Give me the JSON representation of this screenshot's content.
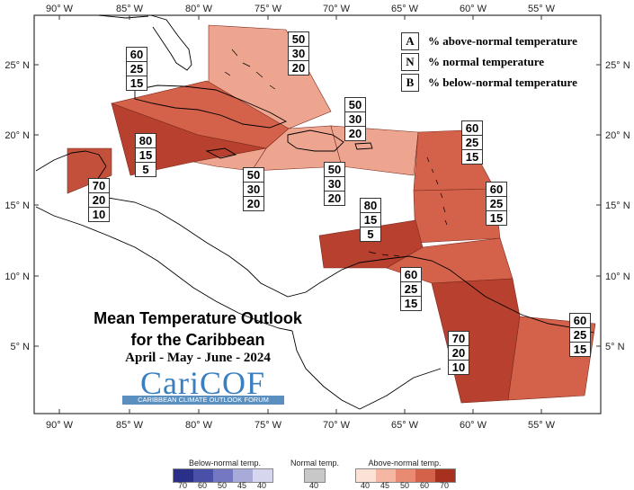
{
  "title_line1": "Mean Temperature Outlook",
  "title_line2": "for the Caribbean",
  "dates": "April - May - June - 2024",
  "logo_text": "CariCOF",
  "logo_sub": "CARIBBEAN CLIMATE OUTLOOK FORUM",
  "legend": [
    {
      "key": "A",
      "text": "% above-normal temperature"
    },
    {
      "key": "N",
      "text": "% normal temperature"
    },
    {
      "key": "B",
      "text": "% below-normal temperature"
    }
  ],
  "lon_ticks": [
    "90° W",
    "85° W",
    "80° W",
    "75° W",
    "70° W",
    "65° W",
    "60° W",
    "55° W"
  ],
  "lat_ticks": [
    "25° N",
    "20° N",
    "15° N",
    "10° N",
    "5° N"
  ],
  "zones": [
    {
      "name": "bahamas",
      "probs": [
        "50",
        "30",
        "20"
      ],
      "color": "#eea590"
    },
    {
      "name": "cuba-north",
      "probs": [
        "60",
        "25",
        "15"
      ],
      "color": "#d4614a"
    },
    {
      "name": "cayman-jamaica",
      "probs": [
        "80",
        "15",
        "5"
      ],
      "color": "#b8402e"
    },
    {
      "name": "belize-yucatan",
      "probs": [
        "70",
        "20",
        "10"
      ],
      "color": "#c3503b"
    },
    {
      "name": "jamaica-south",
      "probs": [
        "50",
        "30",
        "20"
      ],
      "color": "#eea590"
    },
    {
      "name": "hispaniola",
      "probs": [
        "50",
        "30",
        "20"
      ],
      "color": "#eea590"
    },
    {
      "name": "puerto-rico",
      "probs": [
        "50",
        "30",
        "20"
      ],
      "color": "#eea590"
    },
    {
      "name": "leeward-north",
      "probs": [
        "60",
        "25",
        "15"
      ],
      "color": "#d4614a"
    },
    {
      "name": "windward",
      "probs": [
        "60",
        "25",
        "15"
      ],
      "color": "#d4614a"
    },
    {
      "name": "abc-islands",
      "probs": [
        "80",
        "15",
        "5"
      ],
      "color": "#b8402e"
    },
    {
      "name": "trinidad",
      "probs": [
        "60",
        "25",
        "15"
      ],
      "color": "#d4614a"
    },
    {
      "name": "guyana",
      "probs": [
        "70",
        "20",
        "10"
      ],
      "color": "#b8402e"
    },
    {
      "name": "suriname-guiana",
      "probs": [
        "60",
        "25",
        "15"
      ],
      "color": "#d4614a"
    }
  ],
  "colorbar": {
    "below_title": "Below-normal temp.",
    "normal_title": "Normal temp.",
    "above_title": "Above-normal temp.",
    "below_colors": [
      "#2a2f8a",
      "#4a50a8",
      "#7478c2",
      "#a8aad8",
      "#d6d7ee"
    ],
    "below_ticks": [
      "70",
      "60",
      "50",
      "45",
      "40"
    ],
    "normal_colors": [
      "#c8c8c8"
    ],
    "normal_ticks": [
      "40"
    ],
    "above_colors": [
      "#fbe1d6",
      "#f5b7a3",
      "#e98a72",
      "#d4614a",
      "#a8301f"
    ],
    "above_ticks": [
      "40",
      "45",
      "50",
      "60",
      "70"
    ]
  }
}
